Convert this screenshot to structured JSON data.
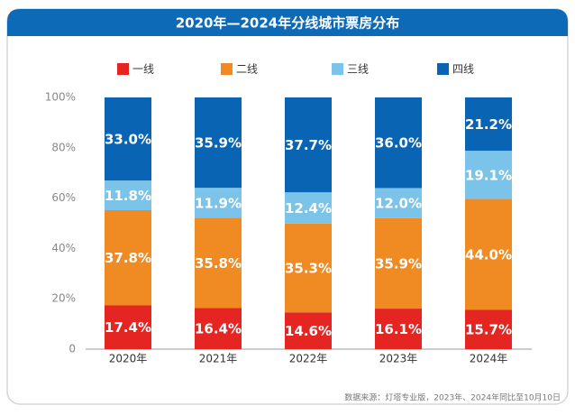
{
  "chart_data": {
    "type": "stacked-bar",
    "title": "2020年—2024年分线城市票房分布",
    "categories": [
      "2020年",
      "2021年",
      "2022年",
      "2023年",
      "2024年"
    ],
    "series": [
      {
        "name": "一线",
        "color": "#e52521",
        "values": [
          17.4,
          16.4,
          14.6,
          16.1,
          15.7
        ],
        "value_labels": [
          "17.4%",
          "16.4%",
          "14.6%",
          "16.1%",
          "15.7%"
        ]
      },
      {
        "name": "二线",
        "color": "#f08a23",
        "values": [
          37.8,
          35.8,
          35.3,
          35.9,
          44.0
        ],
        "value_labels": [
          "37.8%",
          "35.8%",
          "35.3%",
          "35.9%",
          "44.0%"
        ]
      },
      {
        "name": "三线",
        "color": "#7cc3ea",
        "values": [
          11.8,
          11.9,
          12.4,
          12.0,
          19.1
        ],
        "value_labels": [
          "11.8%",
          "11.9%",
          "12.4%",
          "12.0%",
          "19.1%"
        ]
      },
      {
        "name": "四线",
        "color": "#0a64b4",
        "values": [
          33.0,
          35.9,
          37.7,
          36.0,
          21.2
        ],
        "value_labels": [
          "33.0%",
          "35.9%",
          "37.7%",
          "36.0%",
          "21.2%"
        ]
      }
    ],
    "ylim": [
      0,
      100
    ],
    "yticks": [
      0,
      {
        "value": 20,
        "label": "20%"
      },
      {
        "value": 40,
        "label": "40%"
      },
      {
        "value": 60,
        "label": "60%"
      },
      {
        "value": 80,
        "label": "80%"
      },
      {
        "value": 100,
        "label": "100%"
      }
    ],
    "grid": false,
    "source": "数据来源：灯塔专业版，2023年、2024年同比至10月10日"
  }
}
